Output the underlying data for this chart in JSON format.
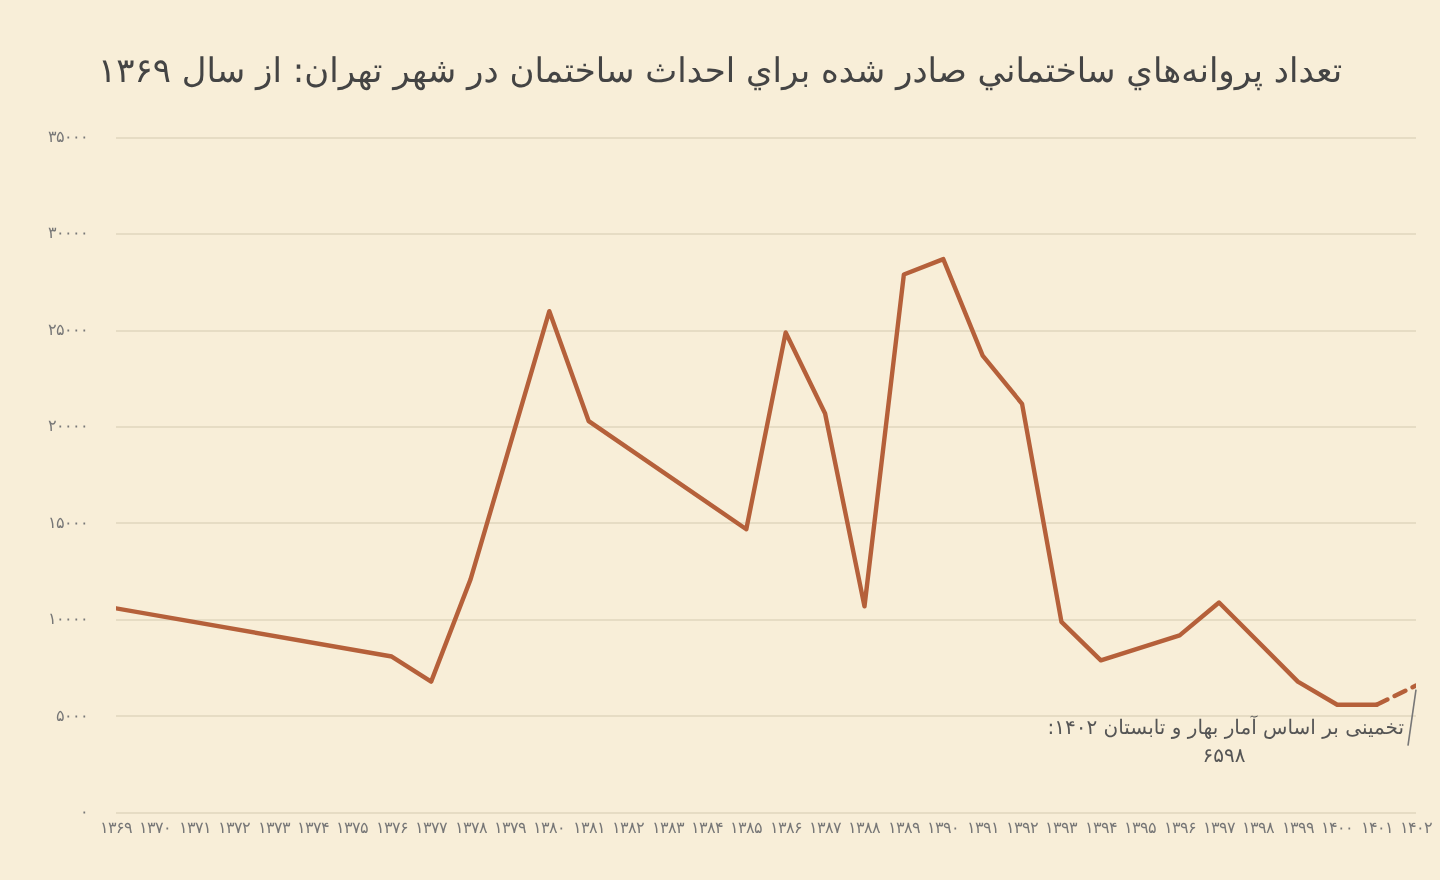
{
  "chart_data": {
    "type": "line",
    "title": "تعداد پروانه‌هاي ساختماني صادر شده براي احداث ساختمان در شهر تهران: از سال ۱۳۶۹",
    "xlim": [
      1369,
      1402
    ],
    "xticks": [
      {
        "value": 1369,
        "label": "۱۳۶۹"
      },
      {
        "value": 1370,
        "label": "۱۳۷۰"
      },
      {
        "value": 1371,
        "label": "۱۳۷۱"
      },
      {
        "value": 1372,
        "label": "۱۳۷۲"
      },
      {
        "value": 1373,
        "label": "۱۳۷۳"
      },
      {
        "value": 1374,
        "label": "۱۳۷۴"
      },
      {
        "value": 1375,
        "label": "۱۳۷۵"
      },
      {
        "value": 1376,
        "label": "۱۳۷۶"
      },
      {
        "value": 1377,
        "label": "۱۳۷۷"
      },
      {
        "value": 1378,
        "label": "۱۳۷۸"
      },
      {
        "value": 1379,
        "label": "۱۳۷۹"
      },
      {
        "value": 1380,
        "label": "۱۳۸۰"
      },
      {
        "value": 1381,
        "label": "۱۳۸۱"
      },
      {
        "value": 1382,
        "label": "۱۳۸۲"
      },
      {
        "value": 1383,
        "label": "۱۳۸۳"
      },
      {
        "value": 1384,
        "label": "۱۳۸۴"
      },
      {
        "value": 1385,
        "label": "۱۳۸۵"
      },
      {
        "value": 1386,
        "label": "۱۳۸۶"
      },
      {
        "value": 1387,
        "label": "۱۳۸۷"
      },
      {
        "value": 1388,
        "label": "۱۳۸۸"
      },
      {
        "value": 1389,
        "label": "۱۳۸۹"
      },
      {
        "value": 1390,
        "label": "۱۳۹۰"
      },
      {
        "value": 1391,
        "label": "۱۳۹۱"
      },
      {
        "value": 1392,
        "label": "۱۳۹۲"
      },
      {
        "value": 1393,
        "label": "۱۳۹۳"
      },
      {
        "value": 1394,
        "label": "۱۳۹۴"
      },
      {
        "value": 1395,
        "label": "۱۳۹۵"
      },
      {
        "value": 1396,
        "label": "۱۳۹۶"
      },
      {
        "value": 1397,
        "label": "۱۳۹۷"
      },
      {
        "value": 1398,
        "label": "۱۳۹۸"
      },
      {
        "value": 1399,
        "label": "۱۳۹۹"
      },
      {
        "value": 1400,
        "label": "۱۴۰۰"
      },
      {
        "value": 1401,
        "label": "۱۴۰۱"
      },
      {
        "value": 1402,
        "label": "۱۴۰۲"
      }
    ],
    "ylim": [
      0,
      35000
    ],
    "yticks": [
      {
        "value": 0,
        "label": "۰"
      },
      {
        "value": 5000,
        "label": "۵۰۰۰"
      },
      {
        "value": 10000,
        "label": "۱۰۰۰۰"
      },
      {
        "value": 15000,
        "label": "۱۵۰۰۰"
      },
      {
        "value": 20000,
        "label": "۲۰۰۰۰"
      },
      {
        "value": 25000,
        "label": "۲۵۰۰۰"
      },
      {
        "value": 30000,
        "label": "۳۰۰۰۰"
      },
      {
        "value": 35000,
        "label": "۳۵۰۰۰"
      }
    ],
    "grid": "y",
    "marker": "none",
    "series": [
      {
        "color": "#b5603a",
        "line_style": "solid",
        "x": [
          1369,
          1376,
          1377,
          1378,
          1380,
          1381,
          1385,
          1386,
          1387,
          1388,
          1389,
          1390,
          1391,
          1392,
          1393,
          1394,
          1396,
          1397,
          1399,
          1400,
          1401
        ],
        "values": [
          10600,
          8100,
          6800,
          12100,
          26000,
          20300,
          14700,
          24900,
          20700,
          10700,
          27900,
          28700,
          23700,
          21200,
          9900,
          7900,
          9200,
          10900,
          6800,
          5600,
          5600
        ]
      },
      {
        "color": "#b5603a",
        "line_style": "dashed",
        "x": [
          1401,
          1402
        ],
        "values": [
          5600,
          6598
        ]
      }
    ],
    "annotations": [
      {
        "text": "تخمینی بر اساس آمار بهار و تابستان ۱۴۰۲:\n۶۵۹۸",
        "x": 1402,
        "y": 6598
      }
    ]
  }
}
